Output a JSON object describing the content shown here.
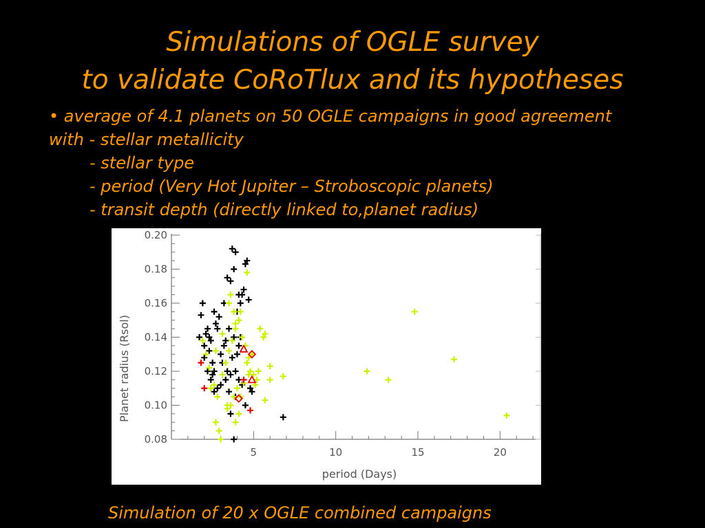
{
  "slide": {
    "title_line1": "Simulations of OGLE survey",
    "title_line2": "to validate CoRoTlux and its hypotheses",
    "bullet_line1": "• average of 4.1 planets on 50 OGLE campaigns in good agreement",
    "bullet_line2": "with - stellar metallicity",
    "bullet_line3": "- stellar type",
    "bullet_line4": "- period (Very Hot Jupiter – Stroboscopic planets)",
    "bullet_line5": "- transit depth (directly linked to,planet radius)",
    "caption": "Simulation of 20 x OGLE combined campaigns",
    "text_color": "#ff9900"
  },
  "chart_data": {
    "type": "scatter",
    "xlabel": "period (Days)",
    "ylabel": "Planet radius (Rsol)",
    "xlim": [
      0.0,
      22.5
    ],
    "ylim": [
      0.08,
      0.2
    ],
    "x_ticks": [
      5,
      10,
      15,
      20
    ],
    "y_ticks": [
      "0.08",
      "0.10",
      "0.12",
      "0.14",
      "0.16",
      "0.18",
      "0.20"
    ],
    "grid": false,
    "series": [
      {
        "marker": "plus",
        "color": "#000000",
        "points": [
          [
            1.8,
            0.153
          ],
          [
            1.9,
            0.16
          ],
          [
            1.7,
            0.14
          ],
          [
            2.0,
            0.135
          ],
          [
            2.2,
            0.145
          ],
          [
            2.3,
            0.132
          ],
          [
            2.5,
            0.125
          ],
          [
            2.6,
            0.12
          ],
          [
            2.4,
            0.115
          ],
          [
            2.6,
            0.108
          ],
          [
            2.2,
            0.12
          ],
          [
            2.3,
            0.14
          ],
          [
            2.6,
            0.155
          ],
          [
            2.8,
            0.145
          ],
          [
            3.0,
            0.13
          ],
          [
            3.2,
            0.135
          ],
          [
            3.1,
            0.125
          ],
          [
            3.4,
            0.12
          ],
          [
            3.6,
            0.118
          ],
          [
            3.3,
            0.115
          ],
          [
            3.0,
            0.112
          ],
          [
            2.8,
            0.11
          ],
          [
            3.5,
            0.108
          ],
          [
            3.2,
            0.16
          ],
          [
            3.4,
            0.175
          ],
          [
            3.6,
            0.173
          ],
          [
            3.8,
            0.18
          ],
          [
            3.9,
            0.19
          ],
          [
            3.7,
            0.192
          ],
          [
            4.6,
            0.185
          ],
          [
            4.5,
            0.183
          ],
          [
            4.3,
            0.165
          ],
          [
            4.4,
            0.168
          ],
          [
            4.1,
            0.165
          ],
          [
            4.2,
            0.16
          ],
          [
            4.7,
            0.162
          ],
          [
            4.0,
            0.155
          ],
          [
            3.5,
            0.145
          ],
          [
            3.8,
            0.14
          ],
          [
            4.2,
            0.14
          ],
          [
            4.0,
            0.13
          ],
          [
            3.7,
            0.128
          ],
          [
            3.9,
            0.12
          ],
          [
            4.1,
            0.115
          ],
          [
            3.9,
            0.105
          ],
          [
            4.5,
            0.1
          ],
          [
            3.6,
            0.095
          ],
          [
            4.8,
            0.11
          ],
          [
            4.9,
            0.108
          ],
          [
            6.8,
            0.093
          ],
          [
            3.8,
            0.08
          ],
          [
            2.0,
            0.128
          ],
          [
            2.4,
            0.138
          ],
          [
            2.7,
            0.148
          ],
          [
            2.9,
            0.152
          ],
          [
            2.1,
            0.142
          ],
          [
            3.3,
            0.138
          ],
          [
            2.5,
            0.118
          ],
          [
            4.3,
            0.112
          ],
          [
            4.1,
            0.135
          ]
        ]
      },
      {
        "marker": "plus",
        "color": "#ccf000",
        "points": [
          [
            1.9,
            0.138
          ],
          [
            2.1,
            0.13
          ],
          [
            2.3,
            0.122
          ],
          [
            2.6,
            0.112
          ],
          [
            2.8,
            0.105
          ],
          [
            3.1,
            0.118
          ],
          [
            3.3,
            0.125
          ],
          [
            3.5,
            0.132
          ],
          [
            3.7,
            0.138
          ],
          [
            3.9,
            0.145
          ],
          [
            4.1,
            0.15
          ],
          [
            4.3,
            0.14
          ],
          [
            4.5,
            0.135
          ],
          [
            4.7,
            0.128
          ],
          [
            4.8,
            0.12
          ],
          [
            5.0,
            0.118
          ],
          [
            5.2,
            0.115
          ],
          [
            4.4,
            0.113
          ],
          [
            4.0,
            0.11
          ],
          [
            3.8,
            0.105
          ],
          [
            3.6,
            0.1
          ],
          [
            3.4,
            0.098
          ],
          [
            2.7,
            0.09
          ],
          [
            2.9,
            0.085
          ],
          [
            3.0,
            0.08
          ],
          [
            3.6,
            0.165
          ],
          [
            3.5,
            0.16
          ],
          [
            3.8,
            0.155
          ],
          [
            4.2,
            0.155
          ],
          [
            3.9,
            0.148
          ],
          [
            5.4,
            0.145
          ],
          [
            5.7,
            0.142
          ],
          [
            5.6,
            0.14
          ],
          [
            4.9,
            0.13
          ],
          [
            4.6,
            0.125
          ],
          [
            5.1,
            0.112
          ],
          [
            6.0,
            0.123
          ],
          [
            6.0,
            0.115
          ],
          [
            5.7,
            0.103
          ],
          [
            6.8,
            0.117
          ],
          [
            4.1,
            0.095
          ],
          [
            3.9,
            0.09
          ],
          [
            3.4,
            0.1
          ],
          [
            2.4,
            0.11
          ],
          [
            4.6,
            0.178
          ],
          [
            11.9,
            0.12
          ],
          [
            13.2,
            0.115
          ],
          [
            14.8,
            0.155
          ],
          [
            17.2,
            0.127
          ],
          [
            20.4,
            0.094
          ],
          [
            2.7,
            0.132
          ],
          [
            3.1,
            0.142
          ],
          [
            4.2,
            0.105
          ],
          [
            4.7,
            0.118
          ],
          [
            5.3,
            0.12
          ]
        ]
      },
      {
        "marker": "plus",
        "color": "#e00000",
        "points": [
          [
            1.8,
            0.125
          ],
          [
            2.0,
            0.11
          ],
          [
            4.8,
            0.097
          ],
          [
            4.4,
            0.115
          ]
        ]
      },
      {
        "marker": "triangle",
        "color": "#e00000",
        "points": [
          [
            4.4,
            0.133
          ],
          [
            4.9,
            0.115
          ]
        ]
      },
      {
        "marker": "diamond",
        "color": "#e00000",
        "points": [
          [
            4.9,
            0.13
          ],
          [
            4.1,
            0.104
          ]
        ]
      }
    ]
  }
}
